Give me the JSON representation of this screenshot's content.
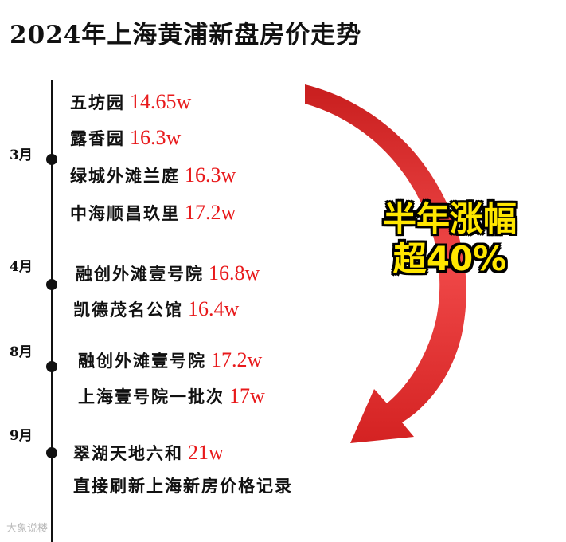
{
  "title": "2024年上海黄浦新盘房价走势",
  "timeline": [
    {
      "month": "3月",
      "entries": [
        {
          "name": "五坊园",
          "price": "14.65w"
        },
        {
          "name": "露香园",
          "price": "16.3w"
        },
        {
          "name": "绿城外滩兰庭",
          "price": "16.3w"
        },
        {
          "name": "中海顺昌玖里",
          "price": "17.2w"
        }
      ]
    },
    {
      "month": "4月",
      "entries": [
        {
          "name": "融创外滩壹号院",
          "price": "16.8w"
        },
        {
          "name": "凯德茂名公馆",
          "price": "16.4w"
        }
      ]
    },
    {
      "month": "8月",
      "entries": [
        {
          "name": "融创外滩壹号院",
          "price": "17.2w"
        },
        {
          "name": "上海壹号院一批次",
          "price": "17w"
        }
      ]
    },
    {
      "month": "9月",
      "entries": [
        {
          "name": "翠湖天地六和",
          "price": "21w"
        }
      ],
      "note": "直接刷新上海新房价格记录"
    }
  ],
  "annotation": [
    "半年涨幅",
    "超40%"
  ],
  "watermark": "大象说楼"
}
